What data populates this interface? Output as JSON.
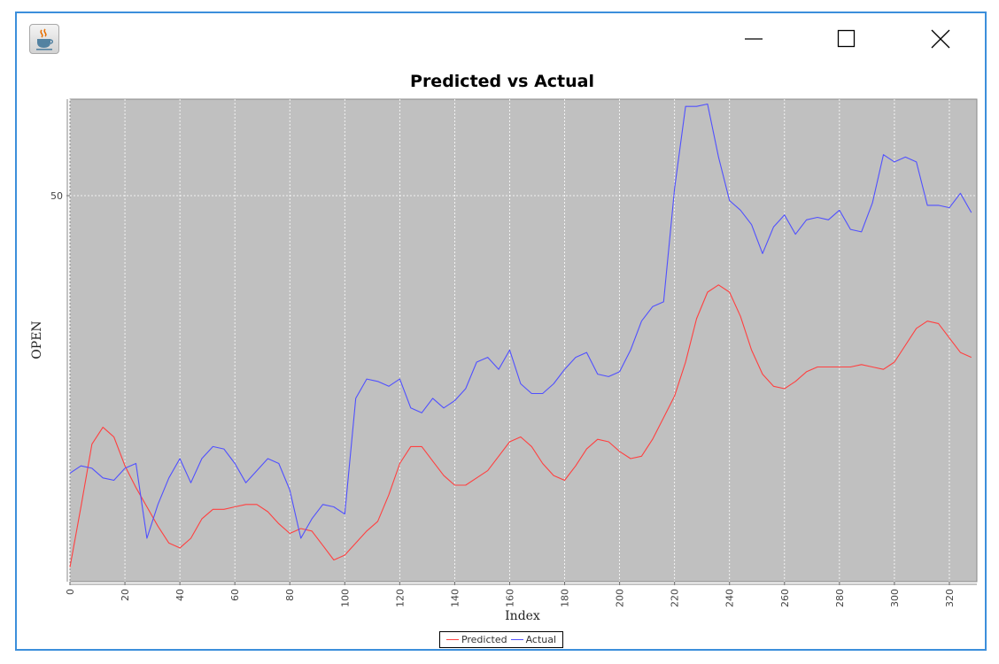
{
  "window": {
    "app_icon": "java-cup-icon",
    "controls": [
      "minimize-icon",
      "maximize-icon",
      "close-icon"
    ]
  },
  "chart_data": {
    "type": "line",
    "title": "Predicted vs Actual",
    "xlabel": "Index",
    "ylabel": "OPEN",
    "xlim": [
      0,
      330
    ],
    "ylim": [
      34,
      54
    ],
    "x_ticks": [
      "0",
      "20",
      "40",
      "60",
      "80",
      "100",
      "120",
      "140",
      "160",
      "180",
      "200",
      "220",
      "240",
      "260",
      "280",
      "300",
      "320"
    ],
    "y_ticks": [
      "50"
    ],
    "grid": true,
    "legend_position": "bottom-center",
    "plot_background": "#c0c0c0",
    "series": [
      {
        "name": "Predicted",
        "color": "#ff4040",
        "x": [
          0,
          4,
          8,
          12,
          16,
          20,
          24,
          28,
          32,
          36,
          40,
          44,
          48,
          52,
          56,
          60,
          64,
          68,
          72,
          76,
          80,
          84,
          88,
          92,
          96,
          100,
          104,
          108,
          112,
          116,
          120,
          124,
          128,
          132,
          136,
          140,
          144,
          148,
          152,
          156,
          160,
          164,
          168,
          172,
          176,
          180,
          184,
          188,
          192,
          196,
          200,
          204,
          208,
          212,
          216,
          220,
          224,
          228,
          232,
          236,
          240,
          244,
          248,
          252,
          256,
          260,
          264,
          268,
          272,
          276,
          280,
          284,
          288,
          292,
          296,
          300,
          304,
          308,
          312,
          316,
          320,
          324,
          328
        ],
        "values": [
          34.6,
          37.1,
          39.7,
          40.4,
          40.0,
          38.8,
          37.9,
          37.1,
          36.3,
          35.6,
          35.4,
          35.8,
          36.6,
          37.0,
          37.0,
          37.1,
          37.2,
          37.2,
          36.9,
          36.4,
          36.0,
          36.2,
          36.1,
          35.5,
          34.9,
          35.1,
          35.6,
          36.1,
          36.5,
          37.6,
          38.9,
          39.6,
          39.6,
          39.0,
          38.4,
          38.0,
          38.0,
          38.3,
          38.6,
          39.2,
          39.8,
          40.0,
          39.6,
          38.9,
          38.4,
          38.2,
          38.8,
          39.5,
          39.9,
          39.8,
          39.4,
          39.1,
          39.2,
          39.9,
          40.8,
          41.7,
          43.1,
          44.9,
          46.0,
          46.3,
          46.0,
          45.0,
          43.6,
          42.6,
          42.1,
          42.0,
          42.3,
          42.7,
          42.9,
          42.9,
          42.9,
          42.9,
          43.0,
          42.9,
          42.8,
          43.1,
          43.8,
          44.5,
          44.8,
          44.7,
          44.1,
          43.5,
          43.3
        ]
      },
      {
        "name": "Actual",
        "color": "#5050ff",
        "x": [
          0,
          4,
          8,
          12,
          16,
          20,
          24,
          28,
          32,
          36,
          40,
          44,
          48,
          52,
          56,
          60,
          64,
          68,
          72,
          76,
          80,
          84,
          88,
          92,
          96,
          100,
          104,
          108,
          112,
          116,
          120,
          124,
          128,
          132,
          136,
          140,
          144,
          148,
          152,
          156,
          160,
          164,
          168,
          172,
          176,
          180,
          184,
          188,
          192,
          196,
          200,
          204,
          208,
          212,
          216,
          220,
          224,
          228,
          232,
          236,
          240,
          244,
          248,
          252,
          256,
          260,
          264,
          268,
          272,
          276,
          280,
          284,
          288,
          292,
          296,
          300,
          304,
          308,
          312,
          316,
          320,
          324,
          328
        ],
        "values": [
          38.5,
          38.8,
          38.7,
          38.3,
          38.2,
          38.7,
          38.9,
          35.8,
          37.2,
          38.3,
          39.1,
          38.1,
          39.1,
          39.6,
          39.5,
          38.9,
          38.1,
          38.6,
          39.1,
          38.9,
          37.8,
          35.8,
          36.6,
          37.2,
          37.1,
          36.8,
          41.6,
          42.4,
          42.3,
          42.1,
          42.4,
          41.2,
          41.0,
          41.6,
          41.2,
          41.5,
          42.0,
          43.1,
          43.3,
          42.8,
          43.6,
          42.2,
          41.8,
          41.8,
          42.2,
          42.8,
          43.3,
          43.5,
          42.6,
          42.5,
          42.7,
          43.6,
          44.8,
          45.4,
          45.6,
          50.3,
          53.7,
          53.7,
          53.8,
          51.6,
          49.8,
          49.4,
          48.8,
          47.6,
          48.7,
          49.2,
          48.4,
          49.0,
          49.1,
          49.0,
          49.4,
          48.6,
          48.5,
          49.7,
          51.7,
          51.4,
          51.6,
          51.4,
          49.6,
          49.6,
          49.5,
          50.1,
          49.3
        ]
      }
    ]
  }
}
